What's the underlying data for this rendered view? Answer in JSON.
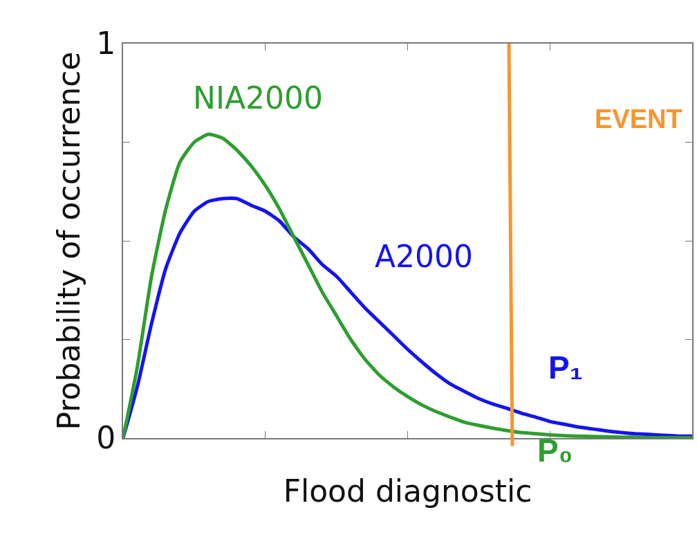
{
  "chart_data": {
    "type": "line",
    "xlabel": "Flood diagnostic",
    "ylabel": "Probability of occurrence",
    "categories": [
      null,
      null,
      null,
      null,
      null,
      null,
      null,
      null,
      null,
      null,
      null,
      null,
      null,
      null,
      null,
      null,
      null,
      null,
      null,
      null,
      null,
      null,
      null,
      null,
      null,
      null,
      null,
      null,
      null,
      null,
      null,
      null,
      null,
      null,
      null,
      null,
      null,
      null,
      null,
      null,
      null
    ],
    "series": [
      {
        "name": "A2000",
        "color": "#1414f0",
        "values": [
          0,
          0.13,
          0.29,
          0.43,
          0.52,
          0.575,
          0.6,
          0.607,
          0.607,
          0.59,
          0.575,
          0.55,
          0.51,
          0.48,
          0.44,
          0.41,
          0.37,
          0.33,
          0.295,
          0.26,
          0.225,
          0.193,
          0.163,
          0.137,
          0.118,
          0.1,
          0.086,
          0.075,
          0.063,
          0.053,
          0.042,
          0.035,
          0.028,
          0.023,
          0.018,
          0.014,
          0.011,
          0.009,
          0.007,
          0.005,
          0.005
        ]
      },
      {
        "name": "NIA2000",
        "color": "#2e9e2e",
        "values": [
          0,
          0.18,
          0.41,
          0.58,
          0.7,
          0.75,
          0.77,
          0.76,
          0.73,
          0.69,
          0.64,
          0.58,
          0.51,
          0.44,
          0.37,
          0.31,
          0.25,
          0.2,
          0.16,
          0.13,
          0.105,
          0.084,
          0.067,
          0.053,
          0.04,
          0.032,
          0.025,
          0.019,
          0.014,
          0.011,
          0.008,
          0.006,
          0.005,
          0.004,
          0.003,
          0.002,
          0.002,
          0.001,
          0.001,
          0.001,
          0.001
        ]
      }
    ],
    "ylim": [
      0,
      1
    ],
    "yticks": [
      0,
      {
        "value": 0.25,
        "label": null
      },
      {
        "value": 0.5,
        "label": null
      },
      {
        "value": 0.75,
        "label": null
      },
      1
    ],
    "tick_labels": "y",
    "legend": false,
    "marker": "none",
    "line_style": "solid",
    "annotations": [
      "P₁",
      "P₀",
      "EVENT"
    ]
  }
}
